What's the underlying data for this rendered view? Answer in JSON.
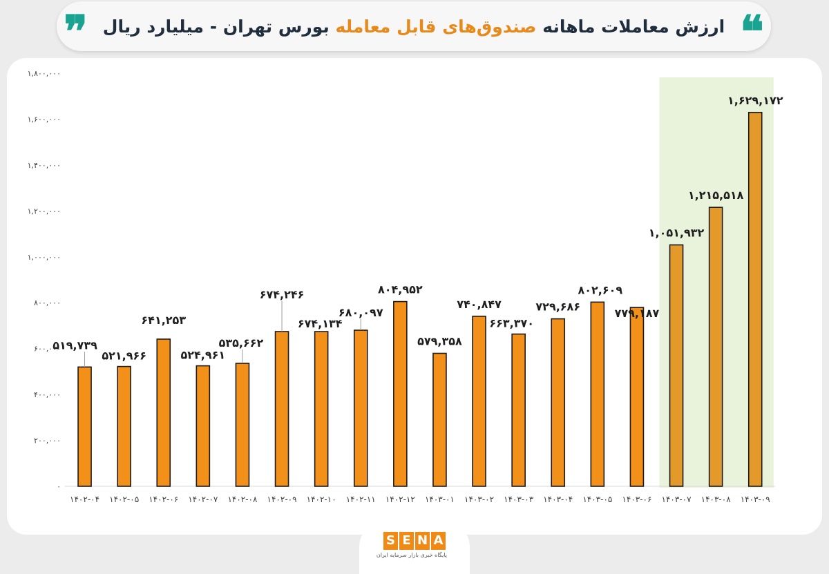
{
  "header": {
    "title_part1": "ارزش معاملات ماهانه",
    "title_highlight": "صندوق‌های قابل معامله",
    "title_part2": "بورس تهران - میلیارد ریال",
    "quote_open": "❝",
    "quote_close": "❞"
  },
  "logo": {
    "letters": [
      "S",
      "E",
      "N",
      "A"
    ],
    "subtitle": "پایگاه خبری بازار سرمایه ایران"
  },
  "colors": {
    "bar": "#f39019",
    "bar_highlighted": "#e39a2a",
    "bar_stroke": "#1a1a1a",
    "highlight_band": "#e9f3dc",
    "title_accent": "#e8891b",
    "quote": "#1aa391"
  },
  "chart_data": {
    "type": "bar",
    "title": "ارزش معاملات ماهانه صندوق‌های قابل معامله بورس تهران - میلیارد ریال",
    "categories": [
      "۱۴۰۲-۰۴",
      "۱۴۰۲-۰۵",
      "۱۴۰۲-۰۶",
      "۱۴۰۲-۰۷",
      "۱۴۰۲-۰۸",
      "۱۴۰۲-۰۹",
      "۱۴۰۲-۱۰",
      "۱۴۰۲-۱۱",
      "۱۴۰۲-۱۲",
      "۱۴۰۳-۰۱",
      "۱۴۰۳-۰۲",
      "۱۴۰۳-۰۳",
      "۱۴۰۳-۰۴",
      "۱۴۰۳-۰۵",
      "۱۴۰۳-۰۶",
      "۱۴۰۳-۰۷",
      "۱۴۰۳-۰۸",
      "۱۴۰۳-۰۹"
    ],
    "values": [
      519739,
      521966,
      641253,
      524961,
      535662,
      674246,
      674134,
      680097,
      804952,
      579358,
      740847,
      663370,
      729686,
      802609,
      779187,
      1051932,
      1215518,
      1629172
    ],
    "data_labels": [
      "۵۱۹,۷۳۹",
      "۵۲۱,۹۶۶",
      "۶۴۱,۲۵۳",
      "۵۲۴,۹۶۱",
      "۵۳۵,۶۶۲",
      "۶۷۴,۲۴۶",
      "۶۷۴,۱۳۴",
      "۶۸۰,۰۹۷",
      "۸۰۴,۹۵۲",
      "۵۷۹,۳۵۸",
      "۷۴۰,۸۴۷",
      "۶۶۳,۳۷۰",
      "۷۲۹,۶۸۶",
      "۸۰۲,۶۰۹",
      "۷۷۹,۱۸۷",
      "۱,۰۵۱,۹۳۲",
      "۱,۲۱۵,۵۱۸",
      "۱,۶۲۹,۱۷۲"
    ],
    "highlighted_categories": [
      "۱۴۰۳-۰۷",
      "۱۴۰۳-۰۸",
      "۱۴۰۳-۰۹"
    ],
    "y_ticks": [
      0,
      200000,
      400000,
      600000,
      800000,
      1000000,
      1200000,
      1400000,
      1600000,
      1800000
    ],
    "y_tick_labels": [
      "۰",
      "۲۰۰,۰۰۰",
      "۴۰۰,۰۰۰",
      "۶۰۰,۰۰۰",
      "۸۰۰,۰۰۰",
      "۱,۰۰۰,۰۰۰",
      "۱,۲۰۰,۰۰۰",
      "۱,۴۰۰,۰۰۰",
      "۱,۶۰۰,۰۰۰",
      "۱,۸۰۰,۰۰۰"
    ],
    "ylim": [
      0,
      1800000
    ],
    "xlabel": "",
    "ylabel": "",
    "grid": false,
    "legend": "none"
  }
}
